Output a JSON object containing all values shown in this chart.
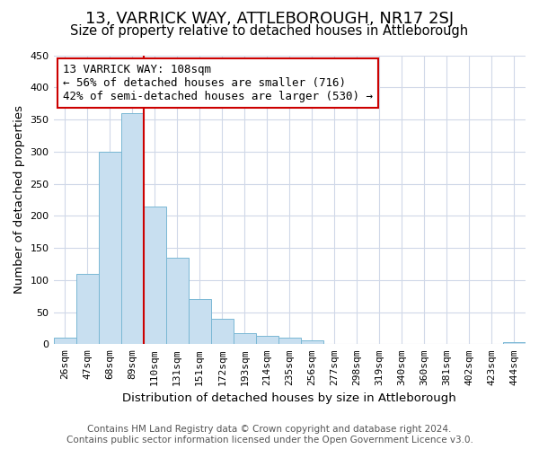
{
  "title": "13, VARRICK WAY, ATTLEBOROUGH, NR17 2SJ",
  "subtitle": "Size of property relative to detached houses in Attleborough",
  "xlabel": "Distribution of detached houses by size in Attleborough",
  "ylabel": "Number of detached properties",
  "bar_labels": [
    "26sqm",
    "47sqm",
    "68sqm",
    "89sqm",
    "110sqm",
    "131sqm",
    "151sqm",
    "172sqm",
    "193sqm",
    "214sqm",
    "235sqm",
    "256sqm",
    "277sqm",
    "298sqm",
    "319sqm",
    "340sqm",
    "360sqm",
    "381sqm",
    "402sqm",
    "423sqm",
    "444sqm"
  ],
  "bar_values": [
    10,
    110,
    300,
    360,
    215,
    135,
    70,
    40,
    17,
    13,
    10,
    6,
    0,
    0,
    0,
    0,
    0,
    0,
    0,
    0,
    3
  ],
  "bar_color": "#c8dff0",
  "bar_edge_color": "#7ab8d4",
  "vline_x": 4,
  "vline_color": "#cc0000",
  "annotation_title": "13 VARRICK WAY: 108sqm",
  "annotation_line1": "← 56% of detached houses are smaller (716)",
  "annotation_line2": "42% of semi-detached houses are larger (530) →",
  "annotation_box_color": "#ffffff",
  "annotation_box_edge": "#cc0000",
  "ylim": [
    0,
    450
  ],
  "yticks": [
    0,
    50,
    100,
    150,
    200,
    250,
    300,
    350,
    400,
    450
  ],
  "footer_line1": "Contains HM Land Registry data © Crown copyright and database right 2024.",
  "footer_line2": "Contains public sector information licensed under the Open Government Licence v3.0.",
  "bg_color": "#ffffff",
  "grid_color": "#d0d8e8",
  "title_fontsize": 13,
  "subtitle_fontsize": 10.5,
  "axis_label_fontsize": 9.5,
  "tick_fontsize": 8,
  "annotation_fontsize": 9,
  "footer_fontsize": 7.5
}
